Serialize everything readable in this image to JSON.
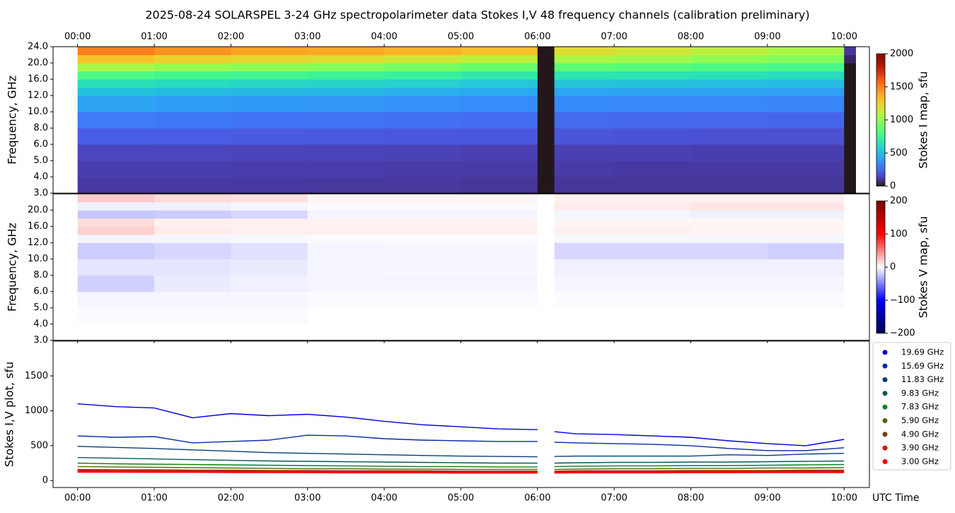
{
  "chart_data": [
    {
      "type": "heatmap",
      "title": "2025-08-24  SOLARSPEL  3-24 GHz spectropolarimeter data   Stokes I,V   48 frequency channels   (calibration preliminary)",
      "ylabel": "Frequency, GHz",
      "clabel": "Stokes I map, sfu",
      "colormap": "turbo",
      "yscale": "piecewise",
      "xaxis_position": "top",
      "xlim": [
        -0.32,
        10.33
      ],
      "xticks": [
        {
          "value": 0,
          "label": "00:00"
        },
        {
          "value": 1,
          "label": "01:00"
        },
        {
          "value": 2,
          "label": "02:00"
        },
        {
          "value": 3,
          "label": "03:00"
        },
        {
          "value": 4,
          "label": "04:00"
        },
        {
          "value": 5,
          "label": "05:00"
        },
        {
          "value": 6,
          "label": "06:00"
        },
        {
          "value": 7,
          "label": "07:00"
        },
        {
          "value": 8,
          "label": "08:00"
        },
        {
          "value": 9,
          "label": "09:00"
        },
        {
          "value": 10,
          "label": "10:00"
        }
      ],
      "ylim": [
        3,
        24
      ],
      "yticks": [
        {
          "value": 3,
          "label": "3.0"
        },
        {
          "value": 4,
          "label": "4.0"
        },
        {
          "value": 5,
          "label": "5.0"
        },
        {
          "value": 6,
          "label": "6.0"
        },
        {
          "value": 8,
          "label": "8.0"
        },
        {
          "value": 10,
          "label": "10.0"
        },
        {
          "value": 12,
          "label": "12.0"
        },
        {
          "value": 16,
          "label": "16.0"
        },
        {
          "value": 20,
          "label": "20.0"
        },
        {
          "value": 24,
          "label": "24.0"
        }
      ],
      "clim": [
        0,
        2000
      ],
      "cticks": [
        0,
        500,
        1000,
        1500,
        2000
      ],
      "xbins": [
        0,
        1,
        2,
        3,
        4,
        5,
        6,
        6.22,
        7,
        8,
        9,
        10,
        10.15
      ],
      "ybins": [
        3,
        4,
        5,
        6,
        8,
        10,
        12,
        14,
        16,
        18,
        20,
        22,
        24
      ],
      "z": [
        [
          110,
          110,
          110,
          105,
          105,
          100,
          0,
          100,
          100,
          100,
          100,
          0
        ],
        [
          125,
          125,
          120,
          120,
          115,
          115,
          0,
          115,
          110,
          110,
          110,
          0
        ],
        [
          145,
          145,
          140,
          140,
          135,
          130,
          0,
          130,
          130,
          125,
          125,
          0
        ],
        [
          220,
          215,
          210,
          205,
          200,
          195,
          0,
          190,
          185,
          180,
          180,
          0
        ],
        [
          300,
          290,
          280,
          275,
          265,
          255,
          0,
          250,
          245,
          240,
          235,
          0
        ],
        [
          420,
          400,
          390,
          380,
          365,
          350,
          0,
          345,
          340,
          335,
          330,
          0
        ],
        [
          520,
          500,
          490,
          480,
          460,
          440,
          0,
          430,
          420,
          420,
          410,
          0
        ],
        [
          640,
          620,
          600,
          590,
          570,
          540,
          0,
          530,
          520,
          510,
          500,
          0
        ],
        [
          800,
          770,
          760,
          740,
          720,
          680,
          0,
          660,
          650,
          640,
          620,
          0
        ],
        [
          1050,
          1000,
          980,
          960,
          920,
          880,
          0,
          850,
          830,
          800,
          780,
          0
        ],
        [
          1300,
          1250,
          1220,
          1200,
          1150,
          1100,
          0,
          1050,
          1020,
          980,
          950,
          50
        ],
        [
          1500,
          1450,
          1400,
          1380,
          1350,
          1300,
          0,
          1200,
          1150,
          1100,
          1050,
          100
        ]
      ]
    },
    {
      "type": "heatmap",
      "ylabel": "Frequency, GHz",
      "clabel": "Stokes V map, sfu",
      "colormap": "seismic",
      "yscale": "piecewise",
      "xlim": [
        -0.32,
        10.33
      ],
      "ylim": [
        3,
        24
      ],
      "yticks": [
        {
          "value": 3,
          "label": "3.0"
        },
        {
          "value": 4,
          "label": "4.0"
        },
        {
          "value": 5,
          "label": "5.0"
        },
        {
          "value": 6,
          "label": "6.0"
        },
        {
          "value": 8,
          "label": "8.0"
        },
        {
          "value": 10,
          "label": "10.0"
        },
        {
          "value": 12,
          "label": "12.0"
        },
        {
          "value": 16,
          "label": "16.0"
        },
        {
          "value": 20,
          "label": "20.0"
        }
      ],
      "clim": [
        -200,
        200
      ],
      "cticks": [
        {
          "value": -200,
          "label": "−200"
        },
        {
          "value": -100,
          "label": "−100"
        },
        0,
        100,
        200
      ],
      "xbins": [
        0,
        1,
        2,
        3,
        4,
        5,
        6,
        6.22,
        7,
        8,
        9,
        10,
        10.15
      ],
      "ybins": [
        3,
        4,
        5,
        6,
        8,
        10,
        12,
        14,
        16,
        18,
        20,
        22,
        24
      ],
      "z": [
        [
          0,
          0,
          0,
          0,
          0,
          0,
          0,
          0,
          0,
          0,
          0,
          0
        ],
        [
          -2,
          -2,
          -2,
          0,
          0,
          0,
          0,
          0,
          0,
          0,
          0,
          0
        ],
        [
          -4,
          -4,
          -3,
          -2,
          -2,
          -2,
          0,
          -2,
          -2,
          -2,
          -2,
          0
        ],
        [
          -18,
          -8,
          -6,
          -4,
          -4,
          -4,
          0,
          -4,
          -4,
          -4,
          -4,
          0
        ],
        [
          -10,
          -10,
          -8,
          -4,
          -3,
          -3,
          0,
          -6,
          -6,
          -6,
          -6,
          0
        ],
        [
          -20,
          -16,
          -12,
          -4,
          -3,
          -3,
          0,
          -16,
          -16,
          -16,
          -18,
          0
        ],
        [
          -4,
          -4,
          -3,
          -2,
          -2,
          -2,
          0,
          -3,
          -3,
          -3,
          -3,
          0
        ],
        [
          18,
          8,
          6,
          6,
          6,
          6,
          0,
          6,
          6,
          4,
          4,
          0
        ],
        [
          14,
          6,
          6,
          5,
          5,
          5,
          0,
          4,
          4,
          4,
          4,
          0
        ],
        [
          -22,
          -20,
          -16,
          -4,
          -4,
          -4,
          0,
          -4,
          -4,
          -6,
          -6,
          0
        ],
        [
          -6,
          -6,
          -4,
          -2,
          -2,
          -2,
          0,
          8,
          8,
          10,
          10,
          0
        ],
        [
          20,
          14,
          12,
          4,
          4,
          4,
          0,
          6,
          6,
          6,
          6,
          0
        ]
      ]
    },
    {
      "type": "line",
      "ylabel": "Stokes I,V plot, sfu",
      "xlabel": "UTC Time",
      "xaxis_position": "bottom",
      "xlim": [
        -0.32,
        10.33
      ],
      "xticks": [
        {
          "value": 0,
          "label": "00:00"
        },
        {
          "value": 1,
          "label": "01:00"
        },
        {
          "value": 2,
          "label": "02:00"
        },
        {
          "value": 3,
          "label": "03:00"
        },
        {
          "value": 4,
          "label": "04:00"
        },
        {
          "value": 5,
          "label": "05:00"
        },
        {
          "value": 6,
          "label": "06:00"
        },
        {
          "value": 7,
          "label": "07:00"
        },
        {
          "value": 8,
          "label": "08:00"
        },
        {
          "value": 9,
          "label": "09:00"
        },
        {
          "value": 10,
          "label": "10:00"
        }
      ],
      "ylim": [
        -100,
        2000
      ],
      "yticks": [
        0,
        500,
        1000,
        1500
      ],
      "x": [
        0,
        0.5,
        1,
        1.5,
        2,
        2.5,
        3,
        3.5,
        4,
        4.5,
        5,
        5.5,
        6,
        6.1,
        6.22,
        6.5,
        7,
        7.5,
        8,
        8.5,
        9,
        9.5,
        10
      ],
      "series": [
        {
          "name": "19.69 GHz",
          "color": "#0000d8",
          "values": [
            1100,
            1060,
            1040,
            900,
            960,
            930,
            950,
            910,
            850,
            800,
            770,
            740,
            730,
            null,
            700,
            670,
            660,
            640,
            620,
            570,
            530,
            500,
            590
          ]
        },
        {
          "name": "15.69 GHz",
          "color": "#0a2aa8",
          "values": [
            640,
            620,
            630,
            540,
            560,
            580,
            650,
            640,
            600,
            580,
            570,
            560,
            560,
            null,
            550,
            540,
            530,
            520,
            500,
            460,
            430,
            430,
            470
          ]
        },
        {
          "name": "11.83 GHz",
          "color": "#0b3d7a",
          "values": [
            490,
            475,
            460,
            440,
            420,
            400,
            390,
            380,
            370,
            360,
            350,
            345,
            340,
            null,
            345,
            350,
            350,
            350,
            350,
            370,
            360,
            380,
            390
          ]
        },
        {
          "name": "9.83 GHz",
          "color": "#0a5a55",
          "values": [
            330,
            320,
            310,
            300,
            290,
            280,
            275,
            270,
            265,
            260,
            255,
            250,
            250,
            null,
            250,
            255,
            260,
            260,
            265,
            265,
            270,
            275,
            280
          ]
        },
        {
          "name": "7.83 GHz",
          "color": "#0a8020",
          "values": [
            250,
            240,
            235,
            230,
            225,
            220,
            215,
            210,
            205,
            200,
            200,
            195,
            195,
            null,
            200,
            205,
            210,
            210,
            215,
            215,
            220,
            225,
            230
          ]
        },
        {
          "name": "5.90 GHz",
          "color": "#4a6a00",
          "values": [
            200,
            195,
            190,
            185,
            180,
            175,
            170,
            170,
            165,
            165,
            160,
            160,
            160,
            null,
            160,
            165,
            170,
            170,
            175,
            175,
            180,
            180,
            185
          ]
        },
        {
          "name": "4.90 GHz",
          "color": "#7a3a00",
          "values": [
            160,
            155,
            155,
            150,
            150,
            145,
            145,
            140,
            140,
            140,
            135,
            135,
            135,
            null,
            135,
            140,
            140,
            140,
            145,
            145,
            145,
            150,
            150
          ]
        },
        {
          "name": "3.90 GHz",
          "color": "#c02000",
          "values": [
            140,
            140,
            135,
            135,
            130,
            130,
            130,
            125,
            125,
            125,
            120,
            120,
            120,
            null,
            120,
            125,
            125,
            125,
            125,
            130,
            130,
            130,
            130
          ]
        },
        {
          "name": "3.00 GHz",
          "color": "#ff0000",
          "values": [
            128,
            128,
            125,
            125,
            122,
            122,
            120,
            118,
            118,
            118,
            115,
            115,
            115,
            null,
            115,
            118,
            118,
            118,
            120,
            120,
            122,
            122,
            122
          ]
        }
      ]
    }
  ]
}
